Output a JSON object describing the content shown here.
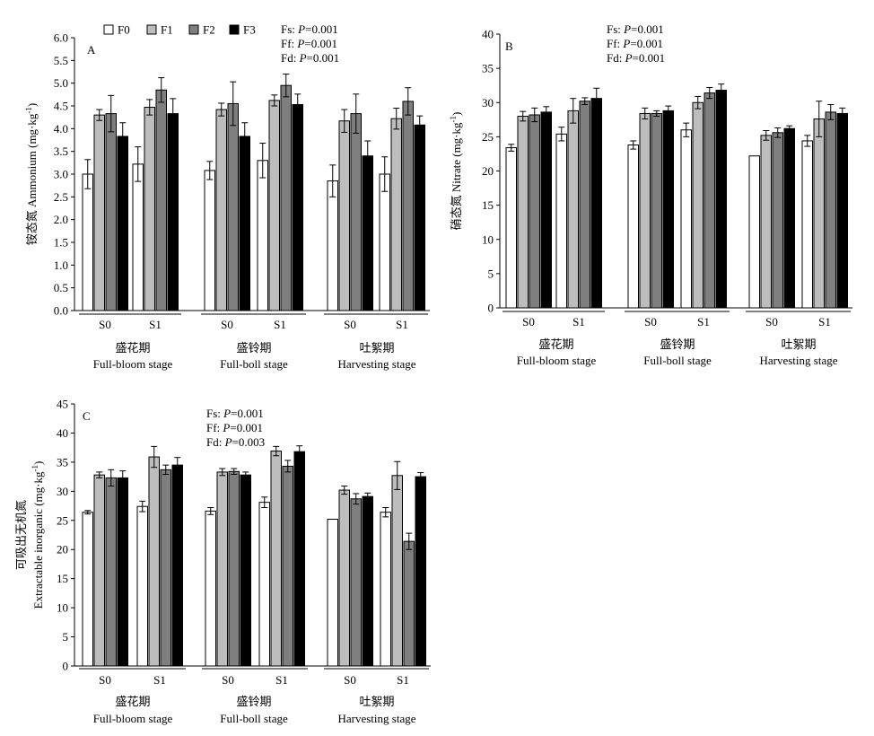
{
  "colors": {
    "F0": "#ffffff",
    "F1": "#bdbdbd",
    "F2": "#7f7f7f",
    "F3": "#000000"
  },
  "legend": {
    "items": [
      "F0",
      "F1",
      "F2",
      "F3"
    ],
    "placement": "top-left"
  },
  "chart_data": [
    {
      "id": "A",
      "type": "bar",
      "panel_label": "A",
      "ylabel_cn": "铵态氮 Ammonium (mg·kg",
      "ylabel_sup": "-1",
      "ylabel_tail": ")",
      "ylim": [
        0,
        6
      ],
      "yticks": [
        "0.0",
        "0.5",
        "1.0",
        "1.5",
        "2.0",
        "2.5",
        "3.0",
        "3.5",
        "4.0",
        "4.5",
        "5.0",
        "5.5",
        "6.0"
      ],
      "subcategories": [
        "S0",
        "S1",
        "S0",
        "S1",
        "S0",
        "S1"
      ],
      "stages": [
        {
          "cn": "盛花期",
          "en": "Full-bloom stage"
        },
        {
          "cn": "盛铃期",
          "en": "Full-boll stage"
        },
        {
          "cn": "吐絮期",
          "en": "Harvesting stage"
        }
      ],
      "stats": [
        {
          "label": "Fs: ",
          "p": "P",
          "value": "=0.001"
        },
        {
          "label": "Ff: ",
          "p": "P",
          "value": "=0.001"
        },
        {
          "label": "Fd: ",
          "p": "P",
          "value": "=0.001"
        }
      ],
      "series": [
        {
          "name": "F0",
          "values": [
            3.0,
            3.22,
            3.08,
            3.3,
            2.85,
            3.0
          ],
          "errors": [
            0.32,
            0.38,
            0.2,
            0.38,
            0.35,
            0.38
          ]
        },
        {
          "name": "F1",
          "values": [
            4.3,
            4.47,
            4.42,
            4.62,
            4.17,
            4.22
          ],
          "errors": [
            0.12,
            0.17,
            0.14,
            0.12,
            0.25,
            0.23
          ]
        },
        {
          "name": "F2",
          "values": [
            4.33,
            4.85,
            4.55,
            4.95,
            4.33,
            4.6
          ],
          "errors": [
            0.4,
            0.27,
            0.48,
            0.25,
            0.43,
            0.3
          ]
        },
        {
          "name": "F3",
          "values": [
            3.83,
            4.33,
            3.83,
            4.53,
            3.4,
            4.08
          ],
          "errors": [
            0.3,
            0.33,
            0.3,
            0.23,
            0.33,
            0.2
          ]
        }
      ]
    },
    {
      "id": "B",
      "type": "bar",
      "panel_label": "B",
      "ylabel_cn": "硝态氮 Nitrate (mg·kg",
      "ylabel_sup": "-1",
      "ylabel_tail": ")",
      "ylim": [
        0,
        40
      ],
      "yticks": [
        "0",
        "5",
        "10",
        "15",
        "20",
        "25",
        "30",
        "35",
        "40"
      ],
      "subcategories": [
        "S0",
        "S1",
        "S0",
        "S1",
        "S0",
        "S1"
      ],
      "stages": [
        {
          "cn": "盛花期",
          "en": "Full-bloom stage"
        },
        {
          "cn": "盛铃期",
          "en": "Full-boll stage"
        },
        {
          "cn": "吐絮期",
          "en": "Harvesting stage"
        }
      ],
      "stats": [
        {
          "label": "Fs: ",
          "p": "P",
          "value": "=0.001"
        },
        {
          "label": "Ff: ",
          "p": "P",
          "value": "=0.001"
        },
        {
          "label": "Fd: ",
          "p": "P",
          "value": "=0.001"
        }
      ],
      "series": [
        {
          "name": "F0",
          "values": [
            23.4,
            25.4,
            23.8,
            26.0,
            22.2,
            24.4
          ],
          "errors": [
            0.5,
            1.0,
            0.6,
            1.0,
            0.0,
            0.8
          ]
        },
        {
          "name": "F1",
          "values": [
            28.0,
            28.8,
            28.4,
            30.0,
            25.2,
            27.6
          ],
          "errors": [
            0.7,
            1.8,
            0.8,
            0.9,
            0.7,
            2.6
          ]
        },
        {
          "name": "F2",
          "values": [
            28.2,
            30.2,
            28.4,
            31.4,
            25.6,
            28.6
          ],
          "errors": [
            1.0,
            0.5,
            0.4,
            0.8,
            0.7,
            1.1
          ]
        },
        {
          "name": "F3",
          "values": [
            28.6,
            30.6,
            28.8,
            31.8,
            26.2,
            28.4
          ],
          "errors": [
            0.8,
            1.5,
            0.7,
            0.9,
            0.4,
            0.8
          ]
        }
      ]
    },
    {
      "id": "C",
      "type": "bar",
      "panel_label": "C",
      "ylabel_cn": "可吸出无机氮",
      "ylabel_en": "Extractable inorganic (mg·kg",
      "ylabel_sup": "-1",
      "ylabel_tail": ")",
      "ylim": [
        0,
        45
      ],
      "yticks": [
        "0",
        "5",
        "10",
        "15",
        "20",
        "25",
        "30",
        "35",
        "40",
        "45"
      ],
      "subcategories": [
        "S0",
        "S1",
        "S0",
        "S1",
        "S0",
        "S1"
      ],
      "stages": [
        {
          "cn": "盛花期",
          "en": "Full-bloom stage"
        },
        {
          "cn": "盛铃期",
          "en": "Full-boll stage"
        },
        {
          "cn": "吐絮期",
          "en": "Harvesting stage"
        }
      ],
      "stats": [
        {
          "label": "Fs: ",
          "p": "P",
          "value": "=0.001"
        },
        {
          "label": "Ff: ",
          "p": "P",
          "value": "=0.001"
        },
        {
          "label": "Fd: ",
          "p": "P",
          "value": "=0.003"
        }
      ],
      "series": [
        {
          "name": "F0",
          "values": [
            26.4,
            27.4,
            26.6,
            28.1,
            25.2,
            26.4
          ],
          "errors": [
            0.3,
            0.9,
            0.6,
            0.9,
            0.0,
            0.8
          ]
        },
        {
          "name": "F1",
          "values": [
            32.8,
            35.9,
            33.3,
            36.9,
            30.2,
            32.7
          ],
          "errors": [
            0.5,
            1.8,
            0.6,
            0.8,
            0.7,
            2.4
          ]
        },
        {
          "name": "F2",
          "values": [
            32.3,
            33.7,
            33.4,
            34.3,
            28.7,
            21.4
          ],
          "errors": [
            1.4,
            0.8,
            0.5,
            1.0,
            0.9,
            1.4
          ]
        },
        {
          "name": "F3",
          "values": [
            32.3,
            34.5,
            32.8,
            36.8,
            29.1,
            32.5
          ],
          "errors": [
            1.2,
            1.3,
            0.5,
            1.0,
            0.6,
            0.7
          ]
        }
      ]
    }
  ]
}
